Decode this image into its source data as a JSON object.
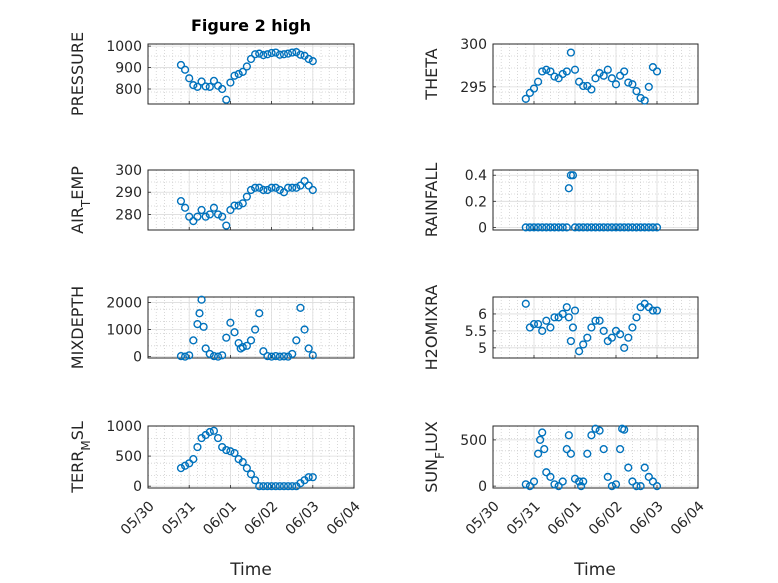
{
  "figure": {
    "title": "Figure 2 high",
    "xlabel": "Time",
    "marker_color": "#0072BD"
  },
  "chart_data": [
    {
      "type": "scatter",
      "ylabel": "PRESSURE",
      "ylim": [
        730,
        1010
      ],
      "yticks": [
        800,
        900,
        1000
      ],
      "xlim": [
        "05/30",
        "06/04"
      ],
      "grid": true,
      "panel": "top-left",
      "title": "Figure 2 high",
      "x": [
        0.8,
        0.9,
        1.0,
        1.1,
        1.2,
        1.3,
        1.4,
        1.5,
        1.6,
        1.7,
        1.8,
        1.9,
        2.0,
        2.1,
        2.2,
        2.3,
        2.4,
        2.5,
        2.6,
        2.7,
        2.8,
        2.9,
        3.0,
        3.1,
        3.2,
        3.3,
        3.4,
        3.5,
        3.6,
        3.7,
        3.8,
        3.9,
        4.0
      ],
      "y": [
        912,
        890,
        850,
        818,
        810,
        835,
        812,
        810,
        838,
        815,
        800,
        750,
        830,
        862,
        870,
        880,
        905,
        940,
        962,
        965,
        958,
        962,
        968,
        970,
        960,
        962,
        965,
        970,
        972,
        960,
        955,
        940,
        930
      ]
    },
    {
      "type": "scatter",
      "ylabel": "THETA",
      "ylim": [
        293,
        300
      ],
      "yticks": [
        295,
        300
      ],
      "xlim": [
        "05/30",
        "06/04"
      ],
      "grid": true,
      "panel": "top-right",
      "x": [
        0.8,
        0.9,
        1.0,
        1.1,
        1.2,
        1.3,
        1.4,
        1.5,
        1.6,
        1.7,
        1.8,
        1.9,
        2.0,
        2.1,
        2.2,
        2.3,
        2.4,
        2.5,
        2.6,
        2.7,
        2.8,
        2.9,
        3.0,
        3.1,
        3.2,
        3.3,
        3.4,
        3.5,
        3.6,
        3.7,
        3.8,
        3.9,
        4.0
      ],
      "y": [
        293.6,
        294.3,
        294.8,
        295.6,
        296.8,
        297.0,
        296.8,
        296.2,
        296.0,
        296.5,
        296.8,
        299.0,
        297.0,
        295.6,
        295.1,
        295.1,
        294.7,
        296.0,
        296.6,
        296.3,
        297.0,
        296.0,
        295.3,
        296.3,
        296.8,
        295.5,
        295.3,
        294.5,
        293.7,
        293.4,
        295.0,
        297.3,
        296.8
      ]
    },
    {
      "type": "scatter",
      "ylabel": "AIR_TEMP",
      "ylim": [
        273,
        300
      ],
      "yticks": [
        280,
        290,
        300
      ],
      "xlim": [
        "05/30",
        "06/04"
      ],
      "grid": true,
      "panel": "row2-left",
      "x": [
        0.8,
        0.9,
        1.0,
        1.1,
        1.2,
        1.3,
        1.4,
        1.5,
        1.6,
        1.7,
        1.8,
        1.9,
        2.0,
        2.1,
        2.2,
        2.3,
        2.4,
        2.5,
        2.6,
        2.7,
        2.8,
        2.9,
        3.0,
        3.1,
        3.2,
        3.3,
        3.4,
        3.5,
        3.6,
        3.7,
        3.8,
        3.9,
        4.0
      ],
      "y": [
        286,
        283,
        279,
        277,
        279,
        282,
        279,
        280,
        283,
        280,
        279,
        275,
        282,
        284,
        284,
        285,
        288,
        291,
        292,
        292,
        291,
        291,
        292,
        292,
        291,
        290,
        292,
        292,
        292,
        293,
        295,
        293,
        291
      ]
    },
    {
      "type": "scatter",
      "ylabel": "RAINFALL",
      "ylim": [
        -0.02,
        0.44
      ],
      "yticks": [
        0,
        0.2,
        0.4
      ],
      "xlim": [
        "05/30",
        "06/04"
      ],
      "grid": true,
      "panel": "row2-right",
      "x": [
        0.8,
        0.9,
        1.0,
        1.1,
        1.2,
        1.3,
        1.4,
        1.5,
        1.6,
        1.7,
        1.8,
        1.85,
        1.9,
        1.95,
        2.0,
        2.1,
        2.2,
        2.3,
        2.4,
        2.5,
        2.6,
        2.7,
        2.8,
        2.9,
        3.0,
        3.1,
        3.2,
        3.3,
        3.4,
        3.5,
        3.6,
        3.7,
        3.8,
        3.9,
        4.0
      ],
      "y": [
        0,
        0,
        0,
        0,
        0,
        0,
        0,
        0,
        0,
        0,
        0,
        0.3,
        0.4,
        0.4,
        0,
        0,
        0,
        0,
        0,
        0,
        0,
        0,
        0,
        0,
        0,
        0,
        0,
        0,
        0,
        0,
        0,
        0,
        0,
        0,
        0
      ]
    },
    {
      "type": "scatter",
      "ylabel": "MIXDEPTH",
      "ylim": [
        -50,
        2200
      ],
      "yticks": [
        0,
        1000,
        2000
      ],
      "xlim": [
        "05/30",
        "06/04"
      ],
      "grid": true,
      "panel": "row3-left",
      "x": [
        0.8,
        0.9,
        1.0,
        1.1,
        1.2,
        1.25,
        1.3,
        1.35,
        1.4,
        1.5,
        1.6,
        1.7,
        1.8,
        1.9,
        2.0,
        2.1,
        2.2,
        2.25,
        2.3,
        2.4,
        2.5,
        2.6,
        2.7,
        2.8,
        2.9,
        3.0,
        3.1,
        3.2,
        3.3,
        3.4,
        3.5,
        3.6,
        3.7,
        3.8,
        3.9,
        4.0
      ],
      "y": [
        20,
        0,
        50,
        600,
        1200,
        1600,
        2100,
        1100,
        300,
        100,
        20,
        0,
        50,
        700,
        1250,
        900,
        500,
        300,
        350,
        400,
        600,
        1000,
        1600,
        200,
        20,
        0,
        20,
        0,
        10,
        0,
        100,
        600,
        1800,
        1000,
        300,
        50
      ]
    },
    {
      "type": "scatter",
      "ylabel": "H2OMIXRA",
      "ylim": [
        4.7,
        6.5
      ],
      "yticks": [
        5,
        5.5,
        6
      ],
      "xlim": [
        "05/30",
        "06/04"
      ],
      "grid": true,
      "panel": "row3-right",
      "x": [
        0.8,
        0.9,
        1.0,
        1.1,
        1.2,
        1.3,
        1.4,
        1.5,
        1.6,
        1.7,
        1.8,
        1.85,
        1.9,
        1.95,
        2.0,
        2.1,
        2.2,
        2.3,
        2.4,
        2.5,
        2.6,
        2.7,
        2.8,
        2.9,
        3.0,
        3.1,
        3.2,
        3.3,
        3.4,
        3.5,
        3.6,
        3.7,
        3.8,
        3.9,
        4.0
      ],
      "y": [
        6.3,
        5.6,
        5.7,
        5.7,
        5.5,
        5.8,
        5.6,
        5.9,
        5.9,
        6.0,
        6.2,
        5.9,
        5.2,
        5.6,
        6.1,
        4.9,
        5.1,
        5.3,
        5.6,
        5.8,
        5.8,
        5.5,
        5.2,
        5.3,
        5.5,
        5.4,
        5.0,
        5.3,
        5.6,
        5.9,
        6.2,
        6.3,
        6.2,
        6.1,
        6.1
      ]
    },
    {
      "type": "scatter",
      "ylabel": "TERR_MSL",
      "ylim": [
        -30,
        1000
      ],
      "yticks": [
        0,
        500,
        1000
      ],
      "xlim": [
        "05/30",
        "06/04"
      ],
      "grid": true,
      "panel": "bottom-left",
      "xticklabels": [
        "05/30",
        "05/31",
        "06/01",
        "06/02",
        "06/03",
        "06/04"
      ],
      "x": [
        0.8,
        0.9,
        1.0,
        1.1,
        1.2,
        1.3,
        1.4,
        1.5,
        1.6,
        1.7,
        1.8,
        1.9,
        2.0,
        2.1,
        2.2,
        2.3,
        2.4,
        2.5,
        2.6,
        2.7,
        2.8,
        2.9,
        3.0,
        3.1,
        3.2,
        3.3,
        3.4,
        3.5,
        3.6,
        3.7,
        3.8,
        3.9,
        4.0
      ],
      "y": [
        300,
        340,
        380,
        450,
        650,
        800,
        850,
        900,
        920,
        800,
        650,
        600,
        580,
        550,
        450,
        400,
        300,
        200,
        100,
        0,
        0,
        0,
        0,
        0,
        0,
        0,
        0,
        0,
        0,
        50,
        100,
        150,
        150
      ]
    },
    {
      "type": "scatter",
      "ylabel": "SUN_FLUX",
      "ylim": [
        -20,
        650
      ],
      "yticks": [
        0,
        500
      ],
      "xlim": [
        "05/30",
        "06/04"
      ],
      "grid": true,
      "panel": "bottom-right",
      "xticklabels": [
        "05/30",
        "05/31",
        "06/01",
        "06/02",
        "06/03",
        "06/04"
      ],
      "x": [
        0.8,
        0.9,
        1.0,
        1.1,
        1.15,
        1.2,
        1.25,
        1.3,
        1.4,
        1.5,
        1.6,
        1.7,
        1.8,
        1.85,
        1.9,
        2.0,
        2.1,
        2.15,
        2.2,
        2.3,
        2.4,
        2.5,
        2.6,
        2.7,
        2.8,
        2.9,
        3.0,
        3.1,
        3.15,
        3.2,
        3.3,
        3.4,
        3.5,
        3.6,
        3.7,
        3.8,
        3.9,
        4.0
      ],
      "y": [
        20,
        0,
        50,
        350,
        500,
        580,
        400,
        150,
        100,
        20,
        0,
        50,
        400,
        550,
        350,
        80,
        50,
        0,
        50,
        350,
        550,
        620,
        600,
        400,
        100,
        0,
        20,
        400,
        620,
        610,
        200,
        50,
        0,
        0,
        200,
        100,
        50,
        0
      ]
    }
  ]
}
